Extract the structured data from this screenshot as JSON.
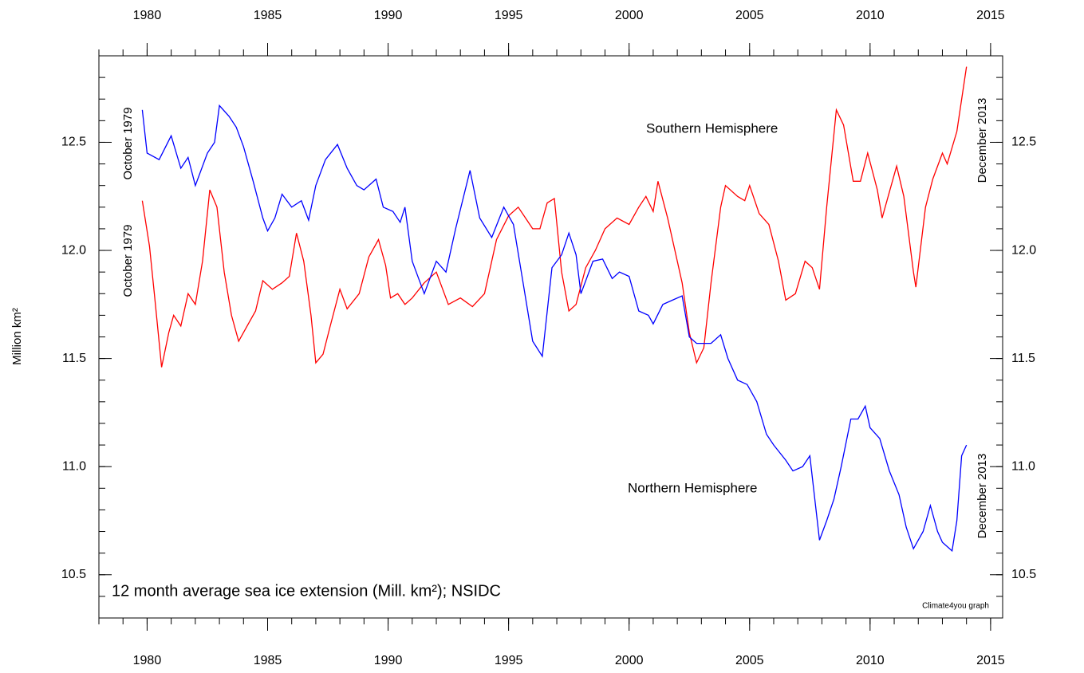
{
  "chart_data": {
    "type": "line",
    "ylabel": "Million km²",
    "xlim": [
      1978,
      2015.5
    ],
    "ylim": [
      10.3,
      12.9
    ],
    "xticks": [
      1980,
      1985,
      1990,
      1995,
      2000,
      2005,
      2010,
      2015
    ],
    "yticks": [
      10.5,
      {
        "value": 11,
        "label": "11.0"
      },
      11.5,
      {
        "value": 12,
        "label": "12.0"
      },
      12.5
    ],
    "xminorticks": [
      1978,
      1979,
      1980,
      1981,
      1982,
      1983,
      1984,
      1985,
      1986,
      1987,
      1988,
      1989,
      1990,
      1991,
      1992,
      1993,
      1994,
      1995,
      1996,
      1997,
      1998,
      1999,
      2000,
      2001,
      2002,
      2003,
      2004,
      2005,
      2006,
      2007,
      2008,
      2009,
      2010,
      2011,
      2012,
      2013,
      2014,
      2015
    ],
    "yminorticks": [
      10.3,
      10.4,
      10.5,
      10.6,
      10.7,
      10.8,
      10.9,
      11.0,
      11.1,
      11.2,
      11.3,
      11.4,
      11.5,
      11.6,
      11.7,
      11.8,
      11.9,
      12.0,
      12.1,
      12.2,
      12.3,
      12.4,
      12.5,
      12.6,
      12.7,
      12.8,
      12.9
    ],
    "series": [
      {
        "name": "Southern Hemisphere",
        "color": "#ff0000",
        "x": [
          1979.8,
          1980.1,
          1980.3,
          1980.6,
          1980.9,
          1981.1,
          1981.4,
          1981.7,
          1982.0,
          1982.3,
          1982.6,
          1982.9,
          1983.2,
          1983.5,
          1983.8,
          1984.2,
          1984.5,
          1984.8,
          1985.2,
          1985.6,
          1985.9,
          1986.2,
          1986.5,
          1986.8,
          1987.0,
          1987.3,
          1987.6,
          1988.0,
          1988.3,
          1988.8,
          1989.2,
          1989.6,
          1989.9,
          1990.1,
          1990.4,
          1990.7,
          1991.0,
          1991.5,
          1992.0,
          1992.5,
          1993.0,
          1993.5,
          1994.0,
          1994.5,
          1995.0,
          1995.4,
          1995.7,
          1996.0,
          1996.3,
          1996.6,
          1996.9,
          1997.2,
          1997.5,
          1997.8,
          1998.2,
          1998.6,
          1999.0,
          1999.5,
          2000.0,
          2000.4,
          2000.7,
          2001.0,
          2001.2,
          2001.6,
          2001.9,
          2002.2,
          2002.5,
          2002.8,
          2003.1,
          2003.4,
          2003.8,
          2004.0,
          2004.5,
          2004.8,
          2005.0,
          2005.4,
          2005.8,
          2006.2,
          2006.5,
          2006.9,
          2007.3,
          2007.6,
          2007.9,
          2008.2,
          2008.6,
          2008.9,
          2009.3,
          2009.6,
          2009.9,
          2010.3,
          2010.5,
          2010.8,
          2011.1,
          2011.4,
          2011.8,
          2011.9,
          2012.3,
          2012.6,
          2013.0,
          2013.2,
          2013.6,
          2014.0
        ],
        "values": [
          12.23,
          12.02,
          11.8,
          11.46,
          11.62,
          11.7,
          11.65,
          11.8,
          11.75,
          11.95,
          12.28,
          12.2,
          11.9,
          11.7,
          11.58,
          11.66,
          11.72,
          11.86,
          11.82,
          11.85,
          11.88,
          12.08,
          11.95,
          11.7,
          11.48,
          11.52,
          11.65,
          11.82,
          11.73,
          11.8,
          11.97,
          12.05,
          11.93,
          11.78,
          11.8,
          11.75,
          11.78,
          11.85,
          11.9,
          11.75,
          11.78,
          11.74,
          11.8,
          12.05,
          12.16,
          12.2,
          12.15,
          12.1,
          12.1,
          12.22,
          12.24,
          11.9,
          11.72,
          11.75,
          11.92,
          12.0,
          12.1,
          12.15,
          12.12,
          12.2,
          12.25,
          12.18,
          12.32,
          12.15,
          12.0,
          11.85,
          11.62,
          11.48,
          11.55,
          11.85,
          12.2,
          12.3,
          12.25,
          12.23,
          12.3,
          12.17,
          12.12,
          11.95,
          11.77,
          11.8,
          11.95,
          11.92,
          11.82,
          12.2,
          12.65,
          12.58,
          12.32,
          12.32,
          12.45,
          12.28,
          12.15,
          12.27,
          12.39,
          12.25,
          11.9,
          11.83,
          12.2,
          12.33,
          12.45,
          12.4,
          12.55,
          12.85
        ]
      },
      {
        "name": "Northern Hemisphere",
        "color": "#0000ff",
        "x": [
          1979.8,
          1980.0,
          1980.5,
          1981.0,
          1981.4,
          1981.7,
          1982.0,
          1982.5,
          1982.8,
          1983.0,
          1983.4,
          1983.7,
          1984.0,
          1984.4,
          1984.8,
          1985.0,
          1985.3,
          1985.6,
          1986.0,
          1986.4,
          1986.7,
          1987.0,
          1987.4,
          1987.9,
          1988.3,
          1988.7,
          1989.0,
          1989.5,
          1989.8,
          1990.2,
          1990.5,
          1990.7,
          1991.0,
          1991.5,
          1992.0,
          1992.4,
          1992.8,
          1993.4,
          1993.8,
          1994.3,
          1994.8,
          1995.2,
          1995.6,
          1996.0,
          1996.4,
          1996.8,
          1997.2,
          1997.5,
          1997.8,
          1998.0,
          1998.5,
          1998.9,
          1999.3,
          1999.6,
          2000.0,
          2000.4,
          2000.8,
          2001.0,
          2001.4,
          2001.8,
          2002.2,
          2002.5,
          2002.8,
          2003.4,
          2003.8,
          2004.1,
          2004.5,
          2004.9,
          2005.3,
          2005.7,
          2006.0,
          2006.5,
          2006.8,
          2007.2,
          2007.5,
          2007.9,
          2008.2,
          2008.5,
          2008.8,
          2009.2,
          2009.5,
          2009.8,
          2010.0,
          2010.4,
          2010.8,
          2011.2,
          2011.5,
          2011.8,
          2012.2,
          2012.5,
          2012.8,
          2013.0,
          2013.4,
          2013.6,
          2013.8,
          2014.0
        ],
        "values": [
          12.65,
          12.45,
          12.42,
          12.53,
          12.38,
          12.43,
          12.3,
          12.45,
          12.5,
          12.67,
          12.62,
          12.57,
          12.48,
          12.32,
          12.15,
          12.09,
          12.15,
          12.26,
          12.2,
          12.23,
          12.14,
          12.3,
          12.42,
          12.49,
          12.38,
          12.3,
          12.28,
          12.33,
          12.2,
          12.18,
          12.13,
          12.2,
          11.95,
          11.8,
          11.95,
          11.9,
          12.1,
          12.37,
          12.15,
          12.06,
          12.2,
          12.12,
          11.85,
          11.58,
          11.51,
          11.92,
          11.98,
          12.08,
          11.98,
          11.8,
          11.95,
          11.96,
          11.87,
          11.9,
          11.88,
          11.72,
          11.7,
          11.66,
          11.75,
          11.77,
          11.79,
          11.6,
          11.57,
          11.57,
          11.61,
          11.5,
          11.4,
          11.38,
          11.3,
          11.15,
          11.1,
          11.03,
          10.98,
          11.0,
          11.05,
          10.66,
          10.75,
          10.85,
          11.0,
          11.22,
          11.22,
          11.28,
          11.18,
          11.13,
          10.98,
          10.87,
          10.72,
          10.62,
          10.7,
          10.82,
          10.7,
          10.65,
          10.61,
          10.75,
          11.05,
          11.1
        ]
      }
    ],
    "annotations": [
      {
        "text": "October 1979",
        "color": "#0000ff"
      },
      {
        "text": "October 1979",
        "color": "#ff0000"
      },
      {
        "text": "December 2013",
        "color": "#ff0000"
      },
      {
        "text": "December 2013",
        "color": "#0000ff"
      },
      {
        "text": "12 month average sea ice extension (Mill. km²); NSIDC",
        "color": "#000000"
      },
      {
        "text": "Climate4you graph",
        "color": "#0000ff"
      }
    ]
  }
}
